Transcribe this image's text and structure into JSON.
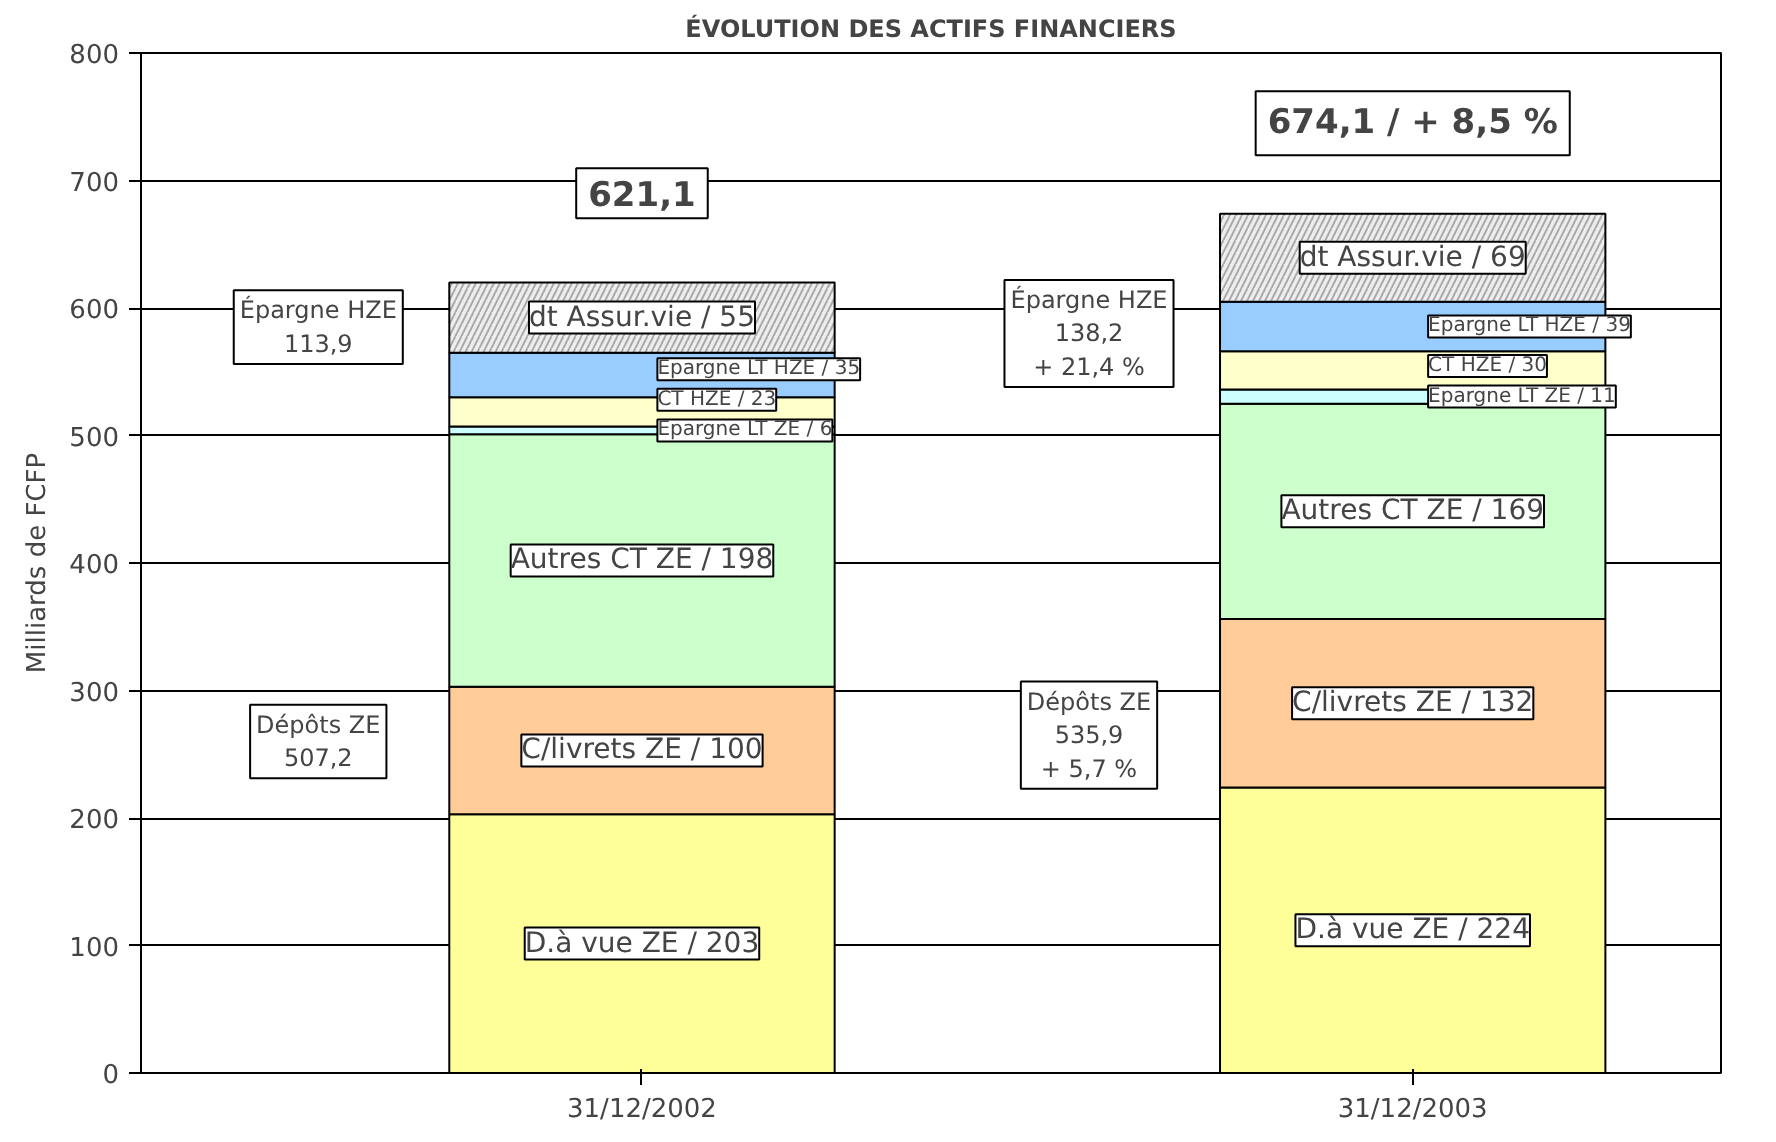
{
  "chart_data": {
    "type": "bar",
    "stacked": true,
    "title": "ÉVOLUTION DES ACTIFS FINANCIERS",
    "ylabel": "Milliards de FCFP",
    "categories": [
      "31/12/2002",
      "31/12/2003"
    ],
    "ylim": [
      0,
      800
    ],
    "yticks": [
      0,
      100,
      200,
      300,
      400,
      500,
      600,
      700,
      800
    ],
    "grid": "y",
    "series": [
      {
        "color": "#ffff99",
        "values": [
          203,
          224
        ],
        "value_labels": [
          "D.à vue ZE / 203",
          "D.à vue ZE / 224"
        ]
      },
      {
        "color": "#ffcc99",
        "values": [
          100,
          132
        ],
        "value_labels": [
          "C/livrets ZE / 100",
          "C/livrets ZE / 132"
        ]
      },
      {
        "color": "#ccffcc",
        "values": [
          198,
          169
        ],
        "value_labels": [
          "Autres CT ZE / 198",
          "Autres CT ZE / 169"
        ]
      },
      {
        "color": "#ccffff",
        "values": [
          6,
          11
        ],
        "value_labels": [
          "Epargne LT ZE / 6",
          "Epargne LT ZE / 11"
        ]
      },
      {
        "color": "#ffffcc",
        "values": [
          23,
          30
        ],
        "value_labels": [
          "CT HZE / 23",
          "CT HZE / 30"
        ]
      },
      {
        "color": "#99ccff",
        "values": [
          35,
          39
        ],
        "value_labels": [
          "Epargne LT HZE / 35",
          "Epargne LT HZE / 39"
        ]
      },
      {
        "color": "#eeeeee",
        "values": [
          55,
          69
        ],
        "value_labels": [
          "dt Assur.vie / 55",
          "dt Assur.vie / 69"
        ]
      }
    ],
    "annotations": [
      "621,1",
      "674,1 / + 8,5 %",
      "Épargne HZE\n113,9",
      "Dépôts ZE\n507,2",
      "Épargne HZE\n138,2\n+ 21,4 %",
      "Dépôts ZE\n535,9\n+ 5,7 %"
    ]
  }
}
